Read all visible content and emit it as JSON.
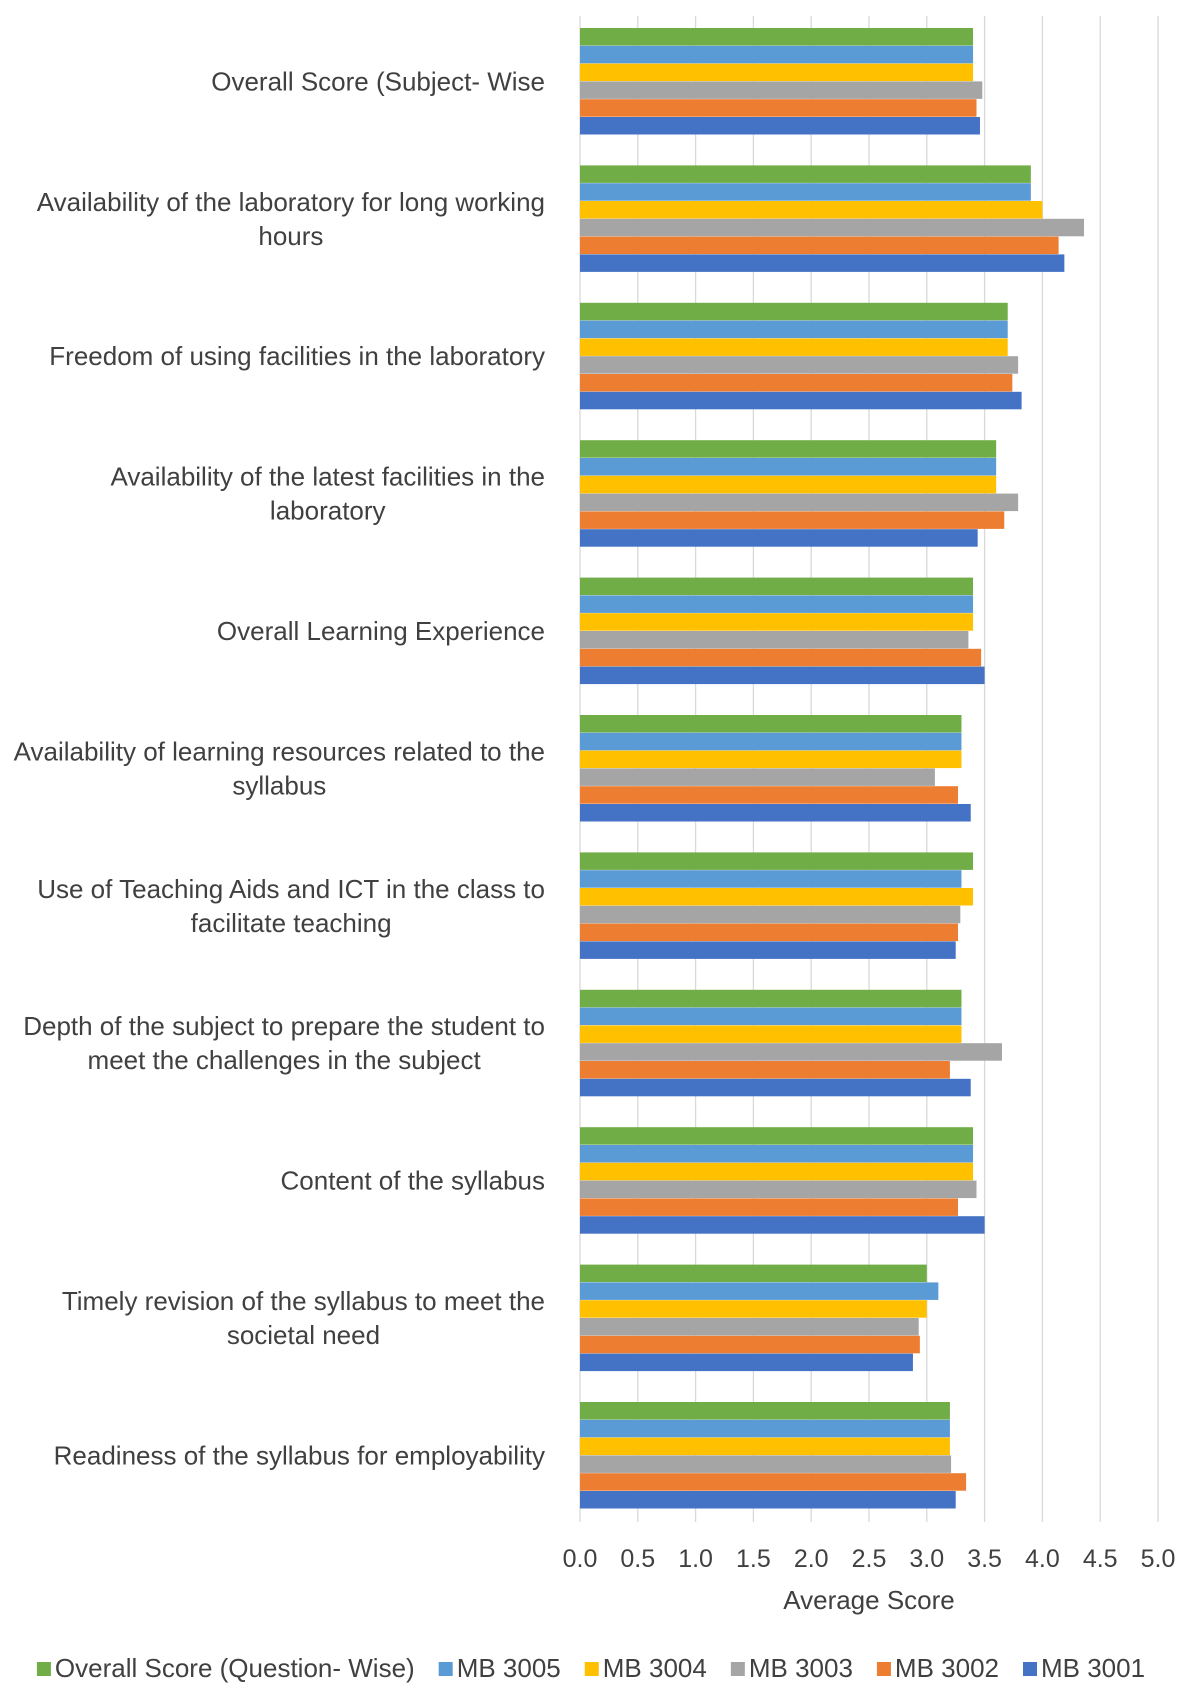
{
  "chart_data": {
    "type": "bar",
    "orientation": "horizontal",
    "categories": [
      "Overall Score (Subject- Wise",
      "Availability of the laboratory for long working hours",
      "Freedom of using facilities in the laboratory",
      "Availability of the latest facilities in the laboratory",
      "Overall Learning Experience",
      "Availability of learning resources related to the syllabus",
      "Use of Teaching Aids and ICT in the class to facilitate teaching",
      "Depth of the subject to prepare the student to meet the challenges in the subject",
      "Content of the syllabus",
      "Timely revision of the syllabus to meet the societal need",
      "Readiness of the syllabus for employability"
    ],
    "category_lines": [
      [
        "Overall Score (Subject- Wise"
      ],
      [
        "Availability of the laboratory for long working",
        "hours"
      ],
      [
        "Freedom of using facilities in the laboratory"
      ],
      [
        "Availability of the latest facilities in the",
        "laboratory"
      ],
      [
        "Overall Learning Experience"
      ],
      [
        "Availability of learning resources related to the",
        "syllabus"
      ],
      [
        "Use of Teaching Aids and ICT in the class to",
        "facilitate teaching"
      ],
      [
        "Depth of the subject to prepare the student to",
        "meet the challenges in the subject"
      ],
      [
        "Content of the syllabus"
      ],
      [
        "Timely revision of the syllabus to meet the",
        "societal need"
      ],
      [
        "Readiness of the syllabus for employability"
      ]
    ],
    "series": [
      {
        "name": "Overall Score (Question- Wise)",
        "color": "#70AD47",
        "values": [
          3.4,
          3.9,
          3.7,
          3.6,
          3.4,
          3.3,
          3.4,
          3.3,
          3.4,
          3.0,
          3.2
        ]
      },
      {
        "name": "MB 3005",
        "color": "#5B9BD5",
        "values": [
          3.4,
          3.9,
          3.7,
          3.6,
          3.4,
          3.3,
          3.3,
          3.3,
          3.4,
          3.1,
          3.2
        ]
      },
      {
        "name": "MB 3004",
        "color": "#FFC000",
        "values": [
          3.4,
          4.0,
          3.7,
          3.6,
          3.4,
          3.3,
          3.4,
          3.3,
          3.4,
          3.0,
          3.2
        ]
      },
      {
        "name": "MB 3003",
        "color": "#A5A5A5",
        "values": [
          3.48,
          4.36,
          3.79,
          3.79,
          3.36,
          3.07,
          3.29,
          3.65,
          3.43,
          2.93,
          3.21
        ]
      },
      {
        "name": "MB 3002",
        "color": "#ED7D31",
        "values": [
          3.43,
          4.14,
          3.74,
          3.67,
          3.47,
          3.27,
          3.27,
          3.2,
          3.27,
          2.94,
          3.34
        ]
      },
      {
        "name": "MB 3001",
        "color": "#4472C4",
        "values": [
          3.46,
          4.19,
          3.82,
          3.44,
          3.5,
          3.38,
          3.25,
          3.38,
          3.5,
          2.88,
          3.25
        ]
      }
    ],
    "legend_order": [
      "Overall Score (Question- Wise)",
      "MB 3005",
      "MB 3004",
      "MB 3003",
      "MB 3002",
      "MB 3001"
    ],
    "xlabel": "Average Score",
    "ylabel": "",
    "xlim": [
      0,
      5
    ],
    "xticks": [
      "0.0",
      "0.5",
      "1.0",
      "1.5",
      "2.0",
      "2.5",
      "3.0",
      "3.5",
      "4.0",
      "4.5",
      "5.0"
    ],
    "grid": "vertical",
    "legend_position": "bottom"
  }
}
